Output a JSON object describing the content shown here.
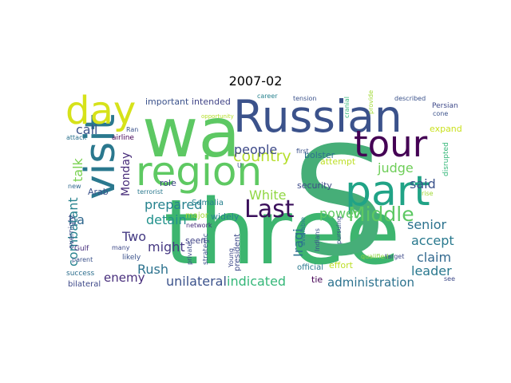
{
  "title": "2007-02",
  "words": [
    {
      "text": "three",
      "color": "#3db56f",
      "rotate": false
    },
    {
      "text": "S",
      "color": "#46ae78",
      "rotate": false
    },
    {
      "text": "wa",
      "color": "#5dc863",
      "rotate": false
    },
    {
      "text": "Russian",
      "color": "#3b528b",
      "rotate": false
    },
    {
      "text": "region",
      "color": "#5ec962",
      "rotate": false
    },
    {
      "text": "part",
      "color": "#20a386",
      "rotate": false
    },
    {
      "text": "visit",
      "color": "#2a788e",
      "rotate": true
    },
    {
      "text": "day",
      "color": "#d6e21a",
      "rotate": false
    },
    {
      "text": "tour",
      "color": "#440154",
      "rotate": false
    },
    {
      "text": "Last",
      "color": "#3a0f5b",
      "rotate": false
    },
    {
      "text": "Middle",
      "color": "#5dc863",
      "rotate": false
    },
    {
      "text": "country",
      "color": "#b5de2b",
      "rotate": false
    },
    {
      "text": "people",
      "color": "#3e4a89",
      "rotate": false
    },
    {
      "text": "judge",
      "color": "#6ece58",
      "rotate": false
    },
    {
      "text": "said",
      "color": "#3b528b",
      "rotate": false
    },
    {
      "text": "call",
      "color": "#3b528b",
      "rotate": false
    },
    {
      "text": "talk",
      "color": "#7ad151",
      "rotate": true
    },
    {
      "text": "ha",
      "color": "#31688e",
      "rotate": false
    },
    {
      "text": "combatant",
      "color": "#26828e",
      "rotate": true
    },
    {
      "text": "Monday",
      "color": "#472c7a",
      "rotate": true
    },
    {
      "text": "prepared",
      "color": "#26828e",
      "rotate": false
    },
    {
      "text": "White",
      "color": "#90d743",
      "rotate": false
    },
    {
      "text": "power",
      "color": "#5ec962",
      "rotate": false
    },
    {
      "text": "senior",
      "color": "#2c728e",
      "rotate": false
    },
    {
      "text": "accept",
      "color": "#29798e",
      "rotate": false
    },
    {
      "text": "claim",
      "color": "#31688e",
      "rotate": false
    },
    {
      "text": "leader",
      "color": "#2a788e",
      "rotate": false
    },
    {
      "text": "administration",
      "color": "#2c728e",
      "rotate": false
    },
    {
      "text": "indicated",
      "color": "#35b779",
      "rotate": false
    },
    {
      "text": "unilateral",
      "color": "#3b528b",
      "rotate": false
    },
    {
      "text": "Rush",
      "color": "#2c728e",
      "rotate": false
    },
    {
      "text": "enemy",
      "color": "#472d7b",
      "rotate": false
    },
    {
      "text": "Two",
      "color": "#443a83",
      "rotate": false
    },
    {
      "text": "might",
      "color": "#453882",
      "rotate": false
    },
    {
      "text": "detain",
      "color": "#21918c",
      "rotate": false
    },
    {
      "text": "Iraqi",
      "color": "#2d708e",
      "rotate": true
    },
    {
      "text": "intended",
      "color": "#414487",
      "rotate": false
    },
    {
      "text": "important",
      "color": "#3b528b",
      "rotate": false
    },
    {
      "text": "role",
      "color": "#404588",
      "rotate": false
    },
    {
      "text": "seen",
      "color": "#414487",
      "rotate": false
    },
    {
      "text": "widely",
      "color": "#25838e",
      "rotate": false
    },
    {
      "text": "security",
      "color": "#3e4a89",
      "rotate": false
    },
    {
      "text": "bolster",
      "color": "#2d718e",
      "rotate": false
    },
    {
      "text": "attempt",
      "color": "#bddf26",
      "rotate": false
    },
    {
      "text": "effort",
      "color": "#bddf26",
      "rotate": false
    },
    {
      "text": "expand",
      "color": "#cae11f",
      "rotate": false
    },
    {
      "text": "Arab",
      "color": "#3b528b",
      "rotate": false
    },
    {
      "text": "major",
      "color": "#a2da37",
      "rotate": false
    },
    {
      "text": "Somalia",
      "color": "#27808e",
      "rotate": false
    },
    {
      "text": "official",
      "color": "#2a788e",
      "rotate": false
    },
    {
      "text": "Gulf",
      "color": "#472f7d",
      "rotate": false
    },
    {
      "text": "bilateral",
      "color": "#3e4989",
      "rotate": false
    },
    {
      "text": "success",
      "color": "#2e6f8e",
      "rotate": false
    },
    {
      "text": "parent",
      "color": "#3b528b",
      "rotate": false
    },
    {
      "text": "overnight",
      "color": "#3e4a89",
      "rotate": true
    },
    {
      "text": "attack",
      "color": "#2c728e",
      "rotate": false
    },
    {
      "text": "new",
      "color": "#31688e",
      "rotate": false
    },
    {
      "text": "airline",
      "color": "#440154",
      "rotate": false
    },
    {
      "text": "Ran",
      "color": "#3b528b",
      "rotate": false
    },
    {
      "text": "terrorist",
      "color": "#2a788e",
      "rotate": false
    },
    {
      "text": "network",
      "color": "#472d7b",
      "rotate": false
    },
    {
      "text": "many",
      "color": "#3e4a89",
      "rotate": false
    },
    {
      "text": "likely",
      "color": "#3b528b",
      "rotate": false
    },
    {
      "text": "private",
      "color": "#3e4a89",
      "rotate": true
    },
    {
      "text": "strategic",
      "color": "#3b528b",
      "rotate": true
    },
    {
      "text": "president",
      "color": "#3e4a89",
      "rotate": true
    },
    {
      "text": "Young",
      "color": "#3e4a89",
      "rotate": true
    },
    {
      "text": "available",
      "color": "#2a788e",
      "rotate": true
    },
    {
      "text": "Indians",
      "color": "#3b528b",
      "rotate": true
    },
    {
      "text": "pursuing",
      "color": "#3b528b",
      "rotate": true
    },
    {
      "text": "qualified",
      "color": "#90d743",
      "rotate": false
    },
    {
      "text": "target",
      "color": "#3e4a89",
      "rotate": false
    },
    {
      "text": "tie",
      "color": "#440154",
      "rotate": false
    },
    {
      "text": "see",
      "color": "#3e4a89",
      "rotate": false
    },
    {
      "text": "career",
      "color": "#26828e",
      "rotate": false
    },
    {
      "text": "tension",
      "color": "#3b528b",
      "rotate": false
    },
    {
      "text": "described",
      "color": "#3b528b",
      "rotate": false
    },
    {
      "text": "Persian",
      "color": "#3e4989",
      "rotate": false
    },
    {
      "text": "cranial",
      "color": "#35b779",
      "rotate": true
    },
    {
      "text": "provide",
      "color": "#a2da37",
      "rotate": true
    },
    {
      "text": "cone",
      "color": "#3b528b",
      "rotate": false
    },
    {
      "text": "first",
      "color": "#3b528b",
      "rotate": false
    },
    {
      "text": "disrupted",
      "color": "#35b779",
      "rotate": true
    },
    {
      "text": "rise",
      "color": "#a2da37",
      "rotate": false
    },
    {
      "text": "opportunity",
      "color": "#b5de2b",
      "rotate": false
    },
    {
      "text": "U",
      "color": "#3b528b",
      "rotate": false
    }
  ]
}
